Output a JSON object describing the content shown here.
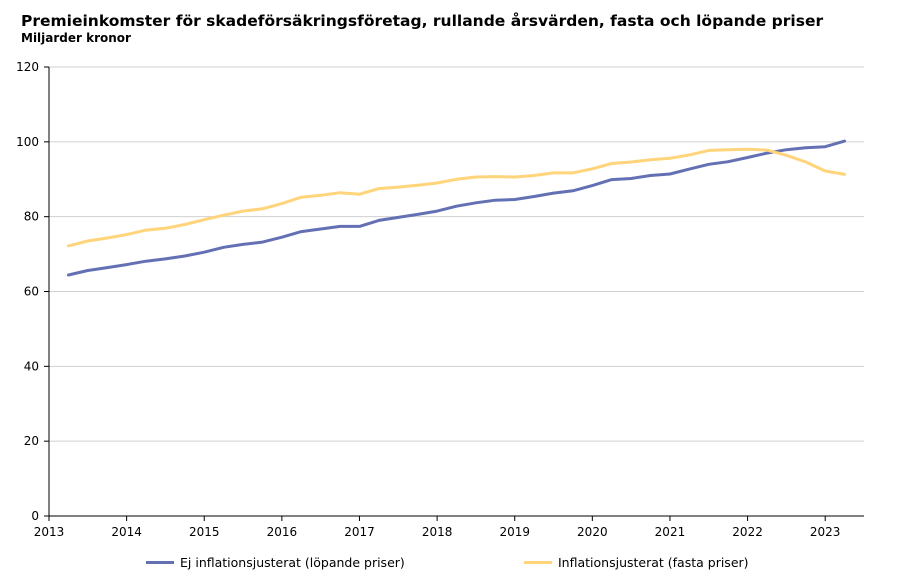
{
  "title": "Premieinkomster för skadeförsäkringsföretag, rullande årsvärden, fasta och löpande priser",
  "subtitle": "Miljarder kronor",
  "chart_data": {
    "type": "line",
    "title": "Premieinkomster för skadeförsäkringsföretag, rullande årsvärden, fasta och löpande priser",
    "subtitle": "Miljarder kronor",
    "xlabel": "",
    "ylabel": "",
    "xlim": [
      2013,
      2023.5
    ],
    "ylim": [
      0,
      120
    ],
    "yticks": [
      0,
      20,
      40,
      60,
      80,
      100,
      120
    ],
    "xticks": [
      2013,
      2014,
      2015,
      2016,
      2017,
      2018,
      2019,
      2020,
      2021,
      2022,
      2023
    ],
    "grid": true,
    "legend": "bottom",
    "x": [
      2013.25,
      2013.5,
      2013.75,
      2014.0,
      2014.25,
      2014.5,
      2014.75,
      2015.0,
      2015.25,
      2015.5,
      2015.75,
      2016.0,
      2016.25,
      2016.5,
      2016.75,
      2017.0,
      2017.25,
      2017.5,
      2017.75,
      2018.0,
      2018.25,
      2018.5,
      2018.75,
      2019.0,
      2019.25,
      2019.5,
      2019.75,
      2020.0,
      2020.25,
      2020.5,
      2020.75,
      2021.0,
      2021.25,
      2021.5,
      2021.75,
      2022.0,
      2022.25,
      2022.5,
      2022.75,
      2023.0,
      2023.25
    ],
    "series": [
      {
        "name": "Ej inflationsjusterat (löpande priser)",
        "color": "#6470b4",
        "values": [
          64.4,
          65.6,
          66.4,
          67.2,
          68.1,
          68.7,
          69.5,
          70.5,
          71.8,
          72.6,
          73.2,
          74.5,
          76.0,
          76.7,
          77.4,
          77.4,
          79.0,
          79.8,
          80.6,
          81.5,
          82.8,
          83.7,
          84.4,
          84.6,
          85.4,
          86.3,
          86.9,
          88.3,
          89.9,
          90.2,
          91.0,
          91.4,
          92.7,
          94.0,
          94.7,
          95.8,
          97.0,
          97.9,
          98.4,
          98.7,
          100.2
        ]
      },
      {
        "name": "Inflationsjusterat (fasta priser)",
        "color": "#ffd47a",
        "values": [
          72.2,
          73.5,
          74.3,
          75.2,
          76.4,
          76.9,
          77.9,
          79.2,
          80.4,
          81.5,
          82.1,
          83.5,
          85.2,
          85.7,
          86.4,
          86.0,
          87.5,
          87.9,
          88.4,
          89.0,
          90.0,
          90.6,
          90.7,
          90.6,
          91.0,
          91.7,
          91.7,
          92.8,
          94.2,
          94.6,
          95.2,
          95.6,
          96.5,
          97.7,
          97.9,
          98.0,
          97.8,
          96.4,
          94.6,
          92.2,
          91.3
        ]
      }
    ]
  }
}
